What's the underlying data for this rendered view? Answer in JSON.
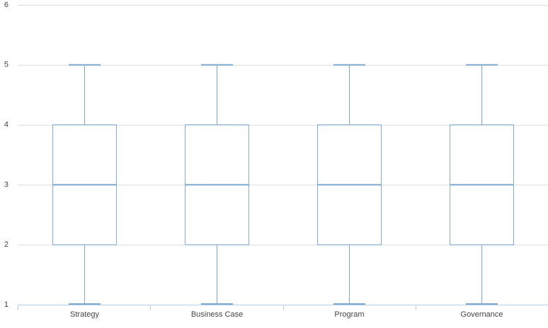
{
  "chart_data": {
    "type": "box",
    "categories": [
      "Strategy",
      "Business Case",
      "Program",
      "Governance"
    ],
    "min": [
      1,
      1,
      1,
      1
    ],
    "q1": [
      2,
      2,
      2,
      2
    ],
    "median": [
      3,
      3,
      3,
      3
    ],
    "q3": [
      4,
      4,
      4,
      4
    ],
    "max": [
      5,
      5,
      5,
      5
    ],
    "color": "#7ea9cf",
    "ylim": [
      1,
      6
    ],
    "yticks": [
      1,
      2,
      3,
      4,
      5,
      6
    ],
    "grid": true
  }
}
